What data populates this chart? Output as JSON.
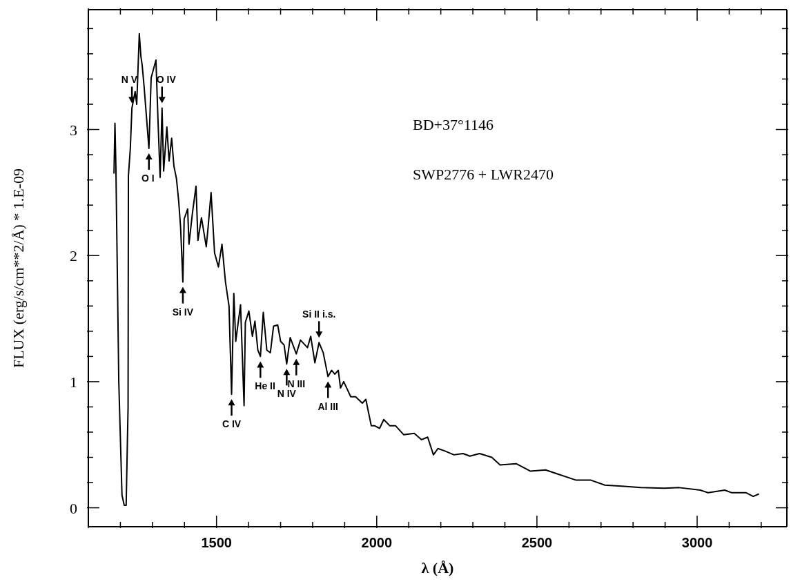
{
  "chart_data": {
    "type": "line",
    "xlabel": "λ (Å)",
    "ylabel": "FLUX (erg/s/cm**2/Å) * 1.E-09",
    "x": [
      1180,
      1183,
      1186,
      1195,
      1205,
      1212,
      1218,
      1224,
      1225,
      1231,
      1236,
      1246,
      1251,
      1259,
      1264,
      1268,
      1274,
      1289,
      1296,
      1311,
      1317,
      1324,
      1330,
      1335,
      1345,
      1352,
      1360,
      1367,
      1375,
      1382,
      1388,
      1395,
      1399,
      1410,
      1414,
      1425,
      1436,
      1442,
      1453,
      1468,
      1474,
      1483,
      1494,
      1506,
      1517,
      1528,
      1539,
      1547,
      1554,
      1560,
      1575,
      1586,
      1590,
      1601,
      1612,
      1620,
      1629,
      1637,
      1646,
      1657,
      1668,
      1678,
      1691,
      1700,
      1711,
      1719,
      1730,
      1749,
      1762,
      1784,
      1794,
      1807,
      1820,
      1833,
      1848,
      1859,
      1869,
      1880,
      1887,
      1897,
      1919,
      1934,
      1955,
      1966,
      1983,
      1994,
      2009,
      2022,
      2041,
      2059,
      2084,
      2117,
      2140,
      2159,
      2177,
      2191,
      2213,
      2241,
      2269,
      2291,
      2321,
      2359,
      2385,
      2435,
      2480,
      2527,
      2562,
      2621,
      2667,
      2712,
      2772,
      2824,
      2898,
      2944,
      3010,
      3034,
      3086,
      3107,
      3152,
      3175,
      3193
    ],
    "values": [
      2.65,
      3.05,
      2.7,
      1.0,
      0.1,
      0.02,
      0.02,
      0.8,
      2.63,
      2.85,
      3.17,
      3.3,
      3.2,
      3.76,
      3.58,
      3.51,
      3.34,
      2.85,
      3.41,
      3.55,
      3.1,
      2.62,
      3.17,
      2.67,
      3.02,
      2.75,
      2.93,
      2.71,
      2.61,
      2.43,
      2.22,
      1.79,
      2.29,
      2.37,
      2.09,
      2.34,
      2.55,
      2.12,
      2.3,
      2.07,
      2.23,
      2.5,
      2.02,
      1.91,
      2.09,
      1.79,
      1.6,
      0.9,
      1.7,
      1.32,
      1.61,
      0.81,
      1.47,
      1.56,
      1.36,
      1.48,
      1.25,
      1.2,
      1.55,
      1.25,
      1.23,
      1.44,
      1.45,
      1.32,
      1.29,
      1.14,
      1.35,
      1.22,
      1.33,
      1.27,
      1.36,
      1.15,
      1.31,
      1.23,
      1.04,
      1.09,
      1.06,
      1.09,
      0.95,
      1.0,
      0.88,
      0.88,
      0.83,
      0.86,
      0.65,
      0.65,
      0.63,
      0.7,
      0.65,
      0.65,
      0.58,
      0.59,
      0.54,
      0.56,
      0.42,
      0.47,
      0.45,
      0.42,
      0.43,
      0.41,
      0.43,
      0.4,
      0.34,
      0.35,
      0.29,
      0.3,
      0.27,
      0.22,
      0.22,
      0.18,
      0.17,
      0.16,
      0.155,
      0.16,
      0.14,
      0.12,
      0.14,
      0.12,
      0.12,
      0.09,
      0.11
    ],
    "color": "#000000",
    "marker": "none",
    "line_style": "solid",
    "xlim": [
      1100,
      3280
    ],
    "ylim": [
      -0.15,
      3.95
    ],
    "xticks": [
      {
        "value": 1100,
        "label": null
      },
      {
        "value": 1200,
        "label": null
      },
      {
        "value": 1300,
        "label": null
      },
      {
        "value": 1400,
        "label": null
      },
      1500,
      {
        "value": 1600,
        "label": null
      },
      {
        "value": 1700,
        "label": null
      },
      {
        "value": 1800,
        "label": null
      },
      {
        "value": 1900,
        "label": null
      },
      2000,
      {
        "value": 2100,
        "label": null
      },
      {
        "value": 2200,
        "label": null
      },
      {
        "value": 2300,
        "label": null
      },
      {
        "value": 2400,
        "label": null
      },
      2500,
      {
        "value": 2600,
        "label": null
      },
      {
        "value": 2700,
        "label": null
      },
      {
        "value": 2800,
        "label": null
      },
      {
        "value": 2900,
        "label": null
      },
      3000,
      {
        "value": 3100,
        "label": null
      },
      {
        "value": 3200,
        "label": null
      }
    ],
    "yticks": [
      0,
      {
        "value": 0.2,
        "label": null
      },
      {
        "value": 0.4,
        "label": null
      },
      {
        "value": 0.6,
        "label": null
      },
      {
        "value": 0.8,
        "label": null
      },
      1,
      {
        "value": 1.2,
        "label": null
      },
      {
        "value": 1.4,
        "label": null
      },
      {
        "value": 1.6,
        "label": null
      },
      {
        "value": 1.8,
        "label": null
      },
      2,
      {
        "value": 2.2,
        "label": null
      },
      {
        "value": 2.4,
        "label": null
      },
      {
        "value": 2.6,
        "label": null
      },
      {
        "value": 2.8,
        "label": null
      },
      3,
      {
        "value": 3.2,
        "label": null
      },
      {
        "value": 3.4,
        "label": null
      },
      {
        "value": 3.6,
        "label": null
      },
      {
        "value": 3.8,
        "label": null
      }
    ],
    "grid": false,
    "legend": false,
    "annotations": [
      "BD+37°1146",
      "SWP2776 + LWR2470",
      {
        "text": "N V",
        "x": 1236,
        "y": 3.17
      },
      {
        "text": "O IV",
        "x": 1330,
        "y": 3.17
      },
      {
        "text": "O I",
        "x": 1289,
        "y": 2.85
      },
      {
        "text": "Si IV",
        "x": 1395,
        "y": 1.79
      },
      {
        "text": "C IV",
        "x": 1547,
        "y": 0.9
      },
      {
        "text": "He II",
        "x": 1637,
        "y": 1.2
      },
      {
        "text": "N IV",
        "x": 1719,
        "y": 1.14
      },
      {
        "text": "N III",
        "x": 1749,
        "y": 1.22
      },
      {
        "text": "Si II i.s.",
        "x": 1820,
        "y": 1.31
      },
      {
        "text": "Al III",
        "x": 1848,
        "y": 1.04
      }
    ]
  }
}
